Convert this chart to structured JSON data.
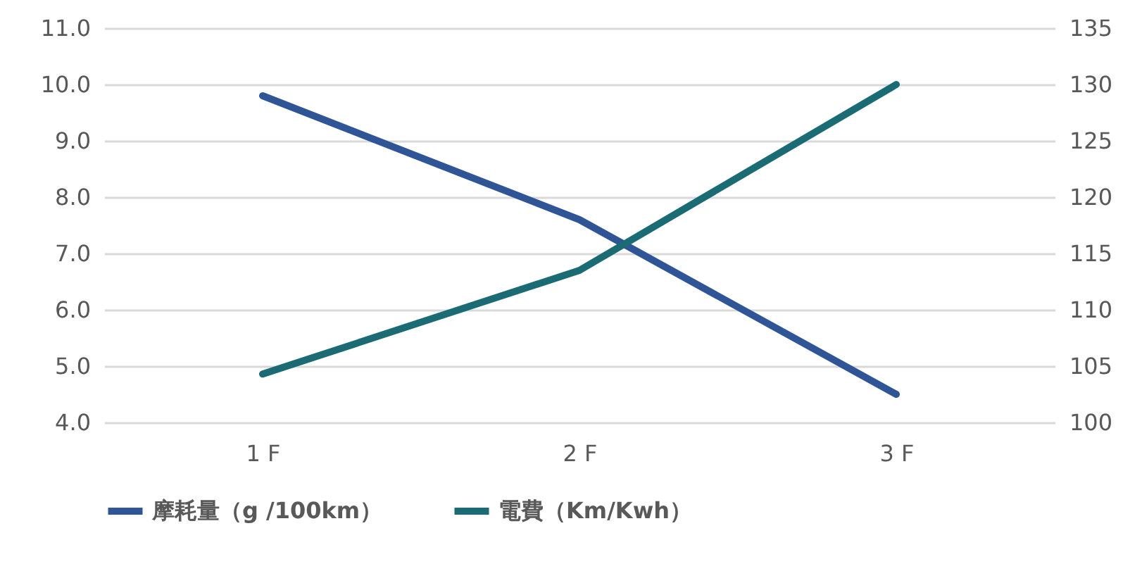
{
  "chart_data": {
    "type": "line",
    "categories": [
      "1 F",
      "2 F",
      "3 F"
    ],
    "series": [
      {
        "name": "摩耗量（g /100km）",
        "color": "#2f5597",
        "values": [
          9.8,
          7.6,
          4.5
        ]
      },
      {
        "name": "電費（Km/Kwh）",
        "color": "#1a6b73",
        "values": [
          104.3,
          113.5,
          130
        ],
        "axis": "y2"
      }
    ],
    "ylim": [
      4,
      11
    ],
    "yticks": [
      {
        "value": 4,
        "label": "4.0"
      },
      {
        "value": 5,
        "label": "5.0"
      },
      {
        "value": 6,
        "label": "6.0"
      },
      {
        "value": 7,
        "label": "7.0"
      },
      {
        "value": 8,
        "label": "8.0"
      },
      {
        "value": 9,
        "label": "9.0"
      },
      {
        "value": 10,
        "label": "10.0"
      },
      {
        "value": 11,
        "label": "11.0"
      }
    ],
    "y2lim": [
      100,
      135
    ],
    "y2ticks": [
      100,
      105,
      110,
      115,
      120,
      125,
      130,
      135
    ],
    "grid": "y",
    "legend": "bottom",
    "marker": "none",
    "line_style": "solid"
  }
}
